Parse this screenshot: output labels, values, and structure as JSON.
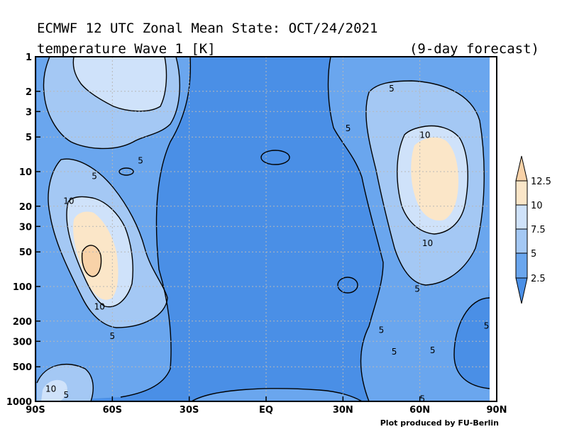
{
  "title_line1": "ECMWF 12 UTC Zonal Mean State: OCT/24/2021",
  "title_line2": "temperature Wave 1 [K]",
  "forecast_label": "(9-day forecast)",
  "credit": "Plot produced by FU-Berlin",
  "colors": {
    "level_0": "#4a8fe6",
    "level_1": "#6aa6ee",
    "level_2": "#a4c8f4",
    "level_3": "#cfe2fa",
    "level_4": "#fbe6c8",
    "level_5": "#f8d2a8"
  },
  "chart_data": {
    "type": "contour",
    "x_axis": {
      "ticks": [
        -90,
        -60,
        -30,
        0,
        30,
        60,
        90
      ],
      "tick_labels": [
        "90S",
        "60S",
        "30S",
        "EQ",
        "30N",
        "60N",
        "90N"
      ],
      "range": [
        -90,
        90
      ]
    },
    "y_axis": {
      "scale": "log",
      "reversed": true,
      "ticks": [
        1,
        2,
        3,
        5,
        10,
        20,
        30,
        50,
        100,
        200,
        300,
        500,
        1000
      ],
      "tick_labels": [
        "1",
        "2",
        "3",
        "5",
        "10",
        "20",
        "30",
        "50",
        "100",
        "200",
        "300",
        "500",
        "1000"
      ],
      "range": [
        1000,
        1
      ]
    },
    "colorbar": {
      "levels": [
        2.5,
        5,
        7.5,
        10,
        12.5
      ],
      "labels": [
        "2.5",
        "5",
        "7.5",
        "10",
        "12.5"
      ]
    },
    "grid": true,
    "contour_labels": [
      {
        "text": "5",
        "lat": -67,
        "p": 11
      },
      {
        "text": "5",
        "lat": -49,
        "p": 8
      },
      {
        "text": "10",
        "lat": -77,
        "p": 18
      },
      {
        "text": "10",
        "lat": -65,
        "p": 150
      },
      {
        "text": "5",
        "lat": -60,
        "p": 270
      },
      {
        "text": "10",
        "lat": -84,
        "p": 780
      },
      {
        "text": "5",
        "lat": -78,
        "p": 880
      },
      {
        "text": "5",
        "lat": 49,
        "p": 1.9
      },
      {
        "text": "5",
        "lat": 32,
        "p": 4.2
      },
      {
        "text": "10",
        "lat": 62,
        "p": 4.8
      },
      {
        "text": "10",
        "lat": 63,
        "p": 42
      },
      {
        "text": "5",
        "lat": 59,
        "p": 105
      },
      {
        "text": "5",
        "lat": 45,
        "p": 240
      },
      {
        "text": "5",
        "lat": 50,
        "p": 370
      },
      {
        "text": "5",
        "lat": 65,
        "p": 360
      },
      {
        "text": "5",
        "lat": 86,
        "p": 220
      },
      {
        "text": "5",
        "lat": 61,
        "p": 950
      }
    ]
  }
}
